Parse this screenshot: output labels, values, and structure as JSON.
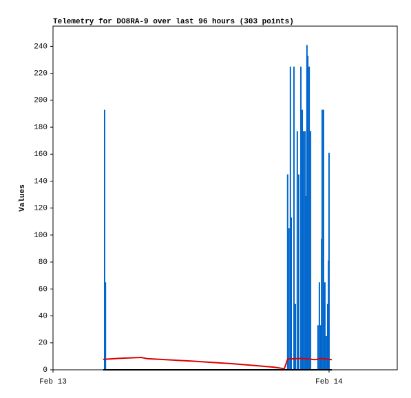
{
  "chart_data": {
    "type": "telemetry",
    "title": "Telemetry for DO8RA-9 over last 96 hours (303 points)",
    "y_label": "Values",
    "xlim": [
      13,
      14.247
    ],
    "xticks": [
      {
        "value": 13,
        "label": "Feb 13"
      },
      {
        "value": 14,
        "label": "Feb 14"
      }
    ],
    "ylim": [
      0,
      255
    ],
    "yticks": [
      0,
      20,
      40,
      60,
      80,
      100,
      120,
      140,
      160,
      180,
      200,
      220,
      240
    ],
    "series": [
      {
        "kind": "impulse",
        "color": "#0066cc",
        "x": [
          13.187,
          13.19,
          13.85,
          13.855,
          13.86,
          13.863,
          13.873,
          13.878,
          13.885,
          13.89,
          13.898,
          13.903,
          13.908,
          13.913,
          13.918,
          13.92,
          13.923,
          13.928,
          13.933,
          13.96,
          13.965,
          13.97,
          13.973,
          13.975,
          13.98,
          13.985,
          13.99,
          13.995,
          13.998,
          14.0
        ],
        "values": [
          193,
          65,
          145,
          105,
          225,
          113,
          225,
          49,
          177,
          145,
          225,
          193,
          177,
          177,
          129,
          241,
          233,
          225,
          177,
          33,
          65,
          33,
          97,
          193,
          193,
          65,
          25,
          49,
          81,
          161
        ]
      },
      {
        "kind": "line",
        "color": "#dd0000",
        "x": [
          13.182,
          13.237,
          13.319,
          13.344,
          13.5,
          13.65,
          13.8,
          13.838,
          13.85,
          13.9,
          13.95,
          13.97,
          14.01
        ],
        "values": [
          7.7,
          8.5,
          9.2,
          8.2,
          6.5,
          4.5,
          2,
          0.8,
          8,
          8.5,
          7.5,
          8.5,
          7.5
        ]
      },
      {
        "kind": "line",
        "color": "#000000",
        "x": [
          13.182,
          14.01
        ],
        "values": [
          0,
          0
        ]
      }
    ]
  }
}
